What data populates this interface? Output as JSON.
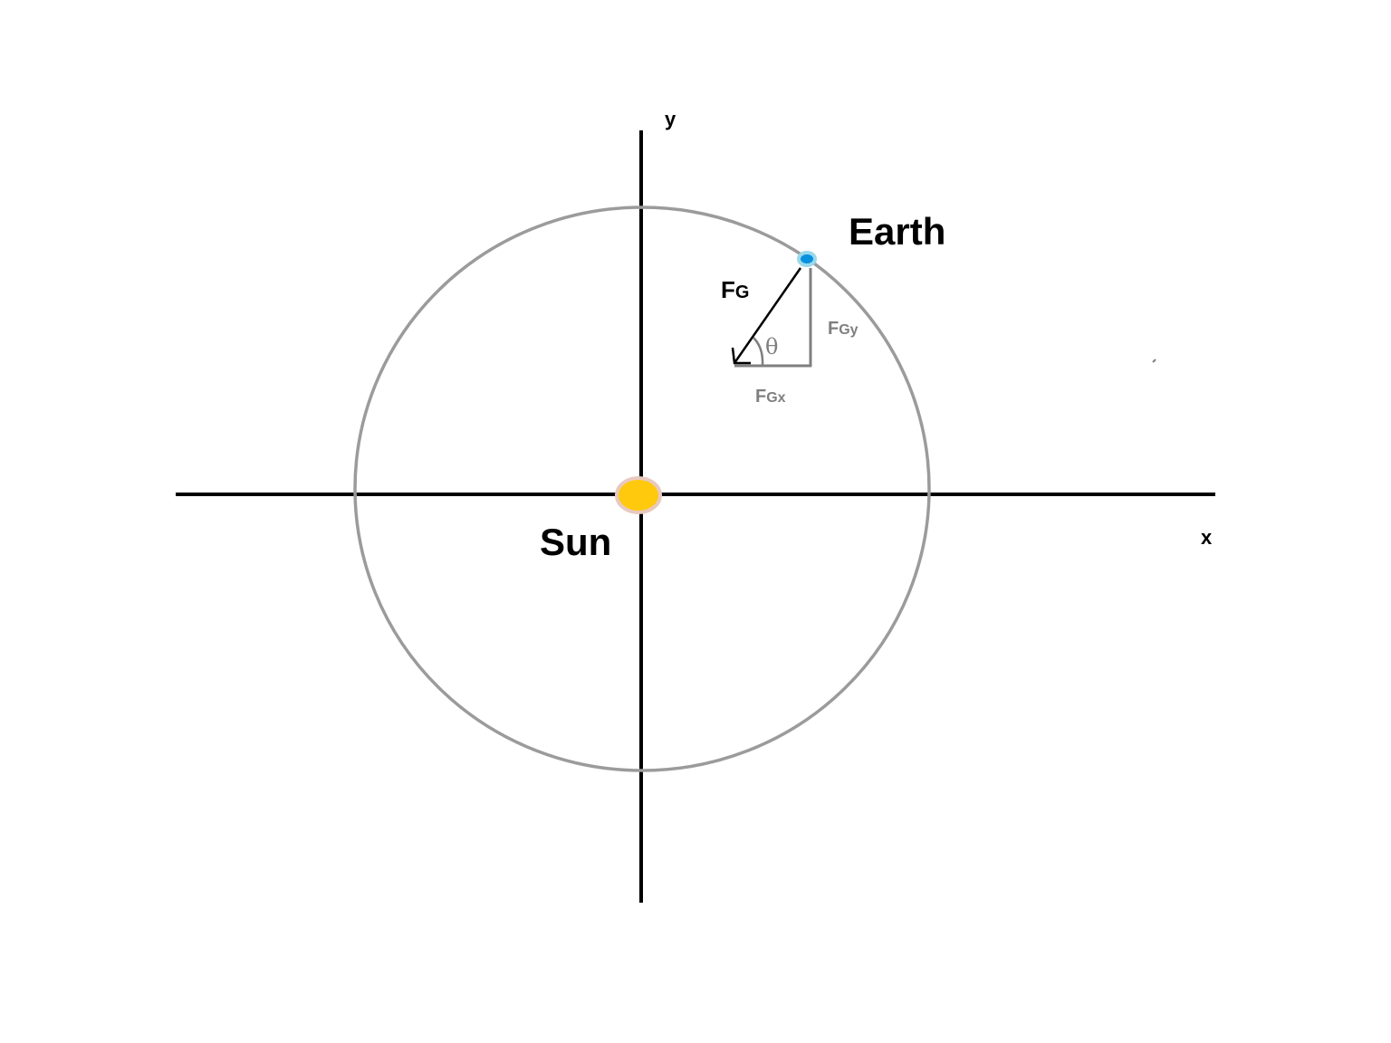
{
  "labels": {
    "y_axis": "y",
    "x_axis": "x",
    "earth": "Earth",
    "sun": "Sun",
    "force_main": "F",
    "force_main_sub": "G",
    "force_x_main": "F",
    "force_x_sub": "Gx",
    "force_y_main": "F",
    "force_y_sub": "Gy",
    "angle": "θ"
  },
  "colors": {
    "axis": "#000000",
    "orbit": "#9b9b9b",
    "sun_fill": "#ffc90e",
    "sun_halo": "#e8c9c0",
    "earth_fill": "#0a90e0",
    "earth_halo": "#99d9ea",
    "force_vector": "#000000",
    "component": "#7f7f7f"
  }
}
